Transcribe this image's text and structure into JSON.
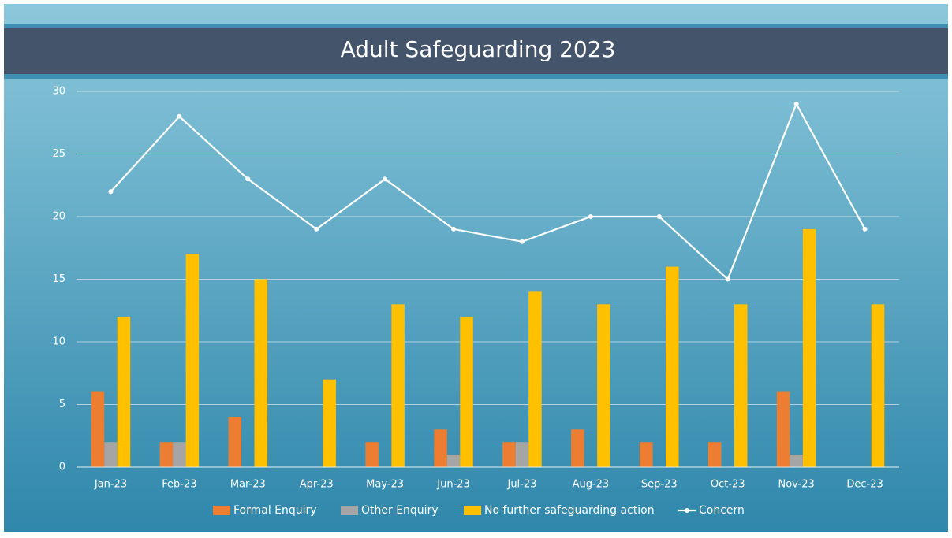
{
  "chart_data": {
    "type": "bar",
    "title": "Adult Safeguarding 2023",
    "categories": [
      "Jan-23",
      "Feb-23",
      "Mar-23",
      "Apr-23",
      "May-23",
      "Jun-23",
      "Jul-23",
      "Aug-23",
      "Sep-23",
      "Oct-23",
      "Nov-23",
      "Dec-23"
    ],
    "series": [
      {
        "name": "Formal Enquiry",
        "type": "bar",
        "color": "#ED7D31",
        "values": [
          6,
          2,
          4,
          0,
          2,
          3,
          2,
          3,
          2,
          2,
          6,
          0
        ]
      },
      {
        "name": "Other Enquiry",
        "type": "bar",
        "color": "#A5A5A5",
        "values": [
          2,
          2,
          0,
          0,
          0,
          1,
          2,
          0,
          0,
          0,
          1,
          0
        ]
      },
      {
        "name": "No further safeguarding action",
        "type": "bar",
        "color": "#FFC000",
        "values": [
          12,
          17,
          15,
          7,
          13,
          12,
          14,
          13,
          16,
          13,
          19,
          13
        ]
      },
      {
        "name": "Concern",
        "type": "line",
        "color": "#FFFFFF",
        "values": [
          22,
          28,
          23,
          19,
          23,
          19,
          18,
          20,
          20,
          15,
          29,
          19
        ]
      }
    ],
    "ylim": [
      0,
      30
    ],
    "yticks": [
      0,
      5,
      10,
      15,
      20,
      25,
      30
    ],
    "grid": true,
    "legend": "bottom"
  }
}
